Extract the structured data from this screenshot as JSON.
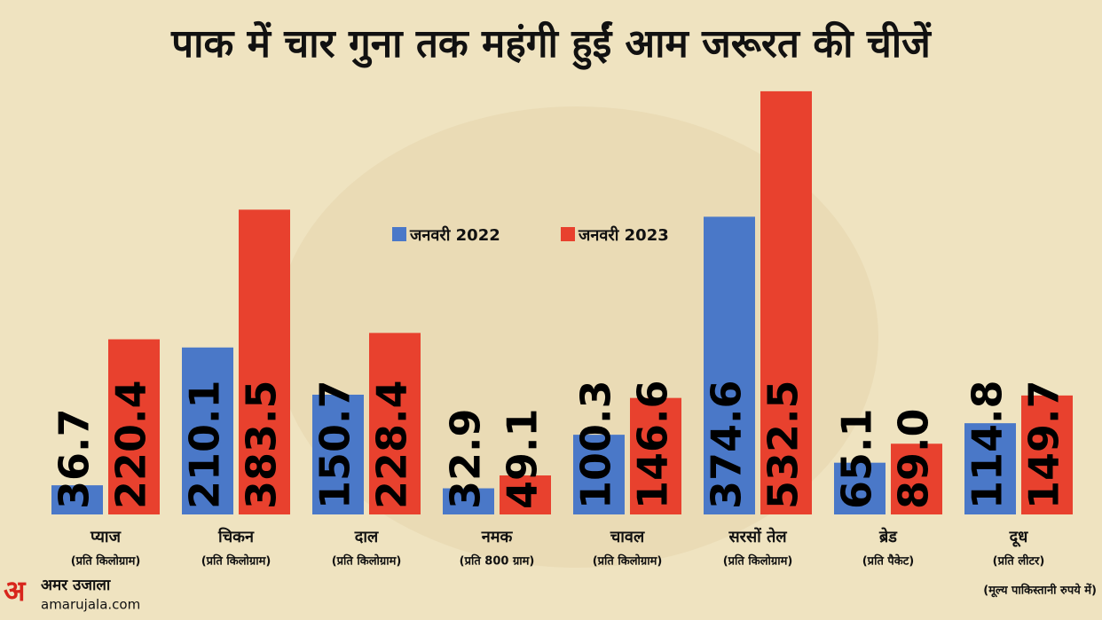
{
  "chart_data": {
    "type": "bar",
    "title": "पाक में चार गुना तक महंगी हुईं आम जरूरत की चीजें",
    "categories": [
      "प्याज",
      "चिकन",
      "दाल",
      "नमक",
      "चावल",
      "सरसों तेल",
      "ब्रेड",
      "दूध"
    ],
    "units": [
      "(प्रति किलोग्राम)",
      "(प्रति किलोग्राम)",
      "(प्रति किलोग्राम)",
      "(प्रति 800 ग्राम)",
      "(प्रति किलोग्राम)",
      "(प्रति किलोग्राम)",
      "(प्रति पैकेट)",
      "(प्रति लीटर)"
    ],
    "series": [
      {
        "name": "जनवरी 2022",
        "color": "#4a78c8",
        "values": [
          36.7,
          210.1,
          150.7,
          32.9,
          100.3,
          374.6,
          65.1,
          114.8
        ],
        "value_labels": [
          "36.7",
          "210.1",
          "150.7",
          "32.9",
          "100.3",
          "374.6",
          "65.1",
          "114.8"
        ]
      },
      {
        "name": "जनवरी 2023",
        "color": "#e8412e",
        "values": [
          220.4,
          383.5,
          228.4,
          49.1,
          146.6,
          532.5,
          89.0,
          149.7
        ],
        "value_labels": [
          "220.4",
          "383.5",
          "228.4",
          "49.1",
          "146.6",
          "532.5",
          "89.0",
          "149.7"
        ]
      }
    ],
    "note": "(मूल्य पाकिस्तानी रुपये में)",
    "brand": "अमर उजाला",
    "brand_url": "amarujala.com"
  }
}
